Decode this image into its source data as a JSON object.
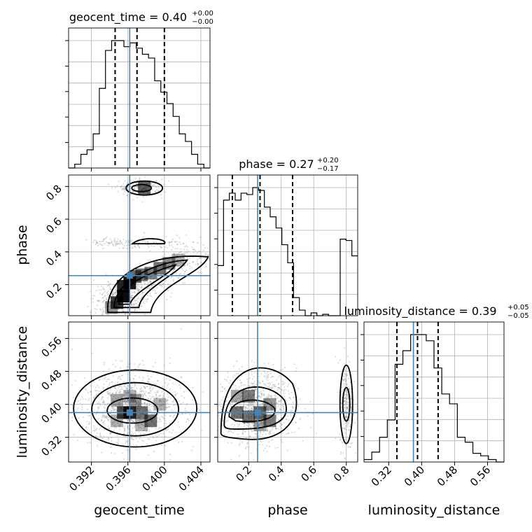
{
  "chart_data": {
    "type": "corner",
    "parameters": [
      "geocent_time",
      "phase",
      "luminosity_distance"
    ],
    "truths": {
      "geocent_time": 0.3962,
      "phase": 0.255,
      "luminosity_distance": 0.38
    },
    "titles": [
      {
        "param": "geocent_time",
        "main": "geocent_time = 0.40",
        "plus": "+0.00",
        "minus": "−0.00"
      },
      {
        "param": "phase",
        "main": "phase = 0.27",
        "plus": "+0.20",
        "minus": "−0.17"
      },
      {
        "param": "luminosity_distance",
        "main": "luminosity_distance = 0.39",
        "plus": "+0.05",
        "minus": "−0.05"
      }
    ],
    "ranges": {
      "geocent_time": [
        0.3895,
        0.405
      ],
      "phase": [
        0.01,
        0.87
      ],
      "luminosity_distance": [
        0.26,
        0.6
      ]
    },
    "ticks": {
      "geocent_time": [
        "0.392",
        "0.396",
        "0.400",
        "0.404"
      ],
      "phase": [
        "0.2",
        "0.4",
        "0.6",
        "0.8"
      ],
      "luminosity_distance": [
        "0.32",
        "0.40",
        "0.48",
        "0.56"
      ]
    },
    "quantiles": {
      "geocent_time": [
        0.3946,
        0.397,
        0.4
      ],
      "phase": [
        0.1,
        0.27,
        0.47
      ],
      "luminosity_distance": [
        0.34,
        0.39,
        0.44
      ]
    },
    "histograms": {
      "geocent_time": {
        "range": [
          0.3895,
          0.405
        ],
        "counts": [
          0,
          5,
          18,
          24,
          45,
          105,
          155,
          168,
          168,
          160,
          165,
          158,
          150,
          145,
          115,
          100,
          85,
          68,
          45,
          35,
          18,
          5,
          0
        ]
      },
      "phase": {
        "range": [
          0.01,
          0.87
        ],
        "counts": [
          36,
          83,
          88,
          83,
          88,
          87,
          92,
          90,
          78,
          71,
          63,
          51,
          38,
          13,
          4,
          0,
          2,
          0,
          1,
          0,
          0,
          55,
          54,
          43
        ]
      },
      "luminosity_distance": {
        "range": [
          0.26,
          0.6
        ],
        "counts": [
          2,
          8,
          20,
          34,
          79,
          90,
          103,
          103,
          98,
          76,
          55,
          47,
          20,
          16,
          7,
          5,
          2,
          0
        ]
      }
    },
    "axis_labels": {
      "geocent_time": "geocent_time",
      "phase": "phase",
      "luminosity_distance": "luminosity_distance"
    },
    "grid": true,
    "colors": {
      "truth": "#4682b4",
      "line": "#000000",
      "grid": "#b0b0b0",
      "points": "#808080"
    }
  }
}
